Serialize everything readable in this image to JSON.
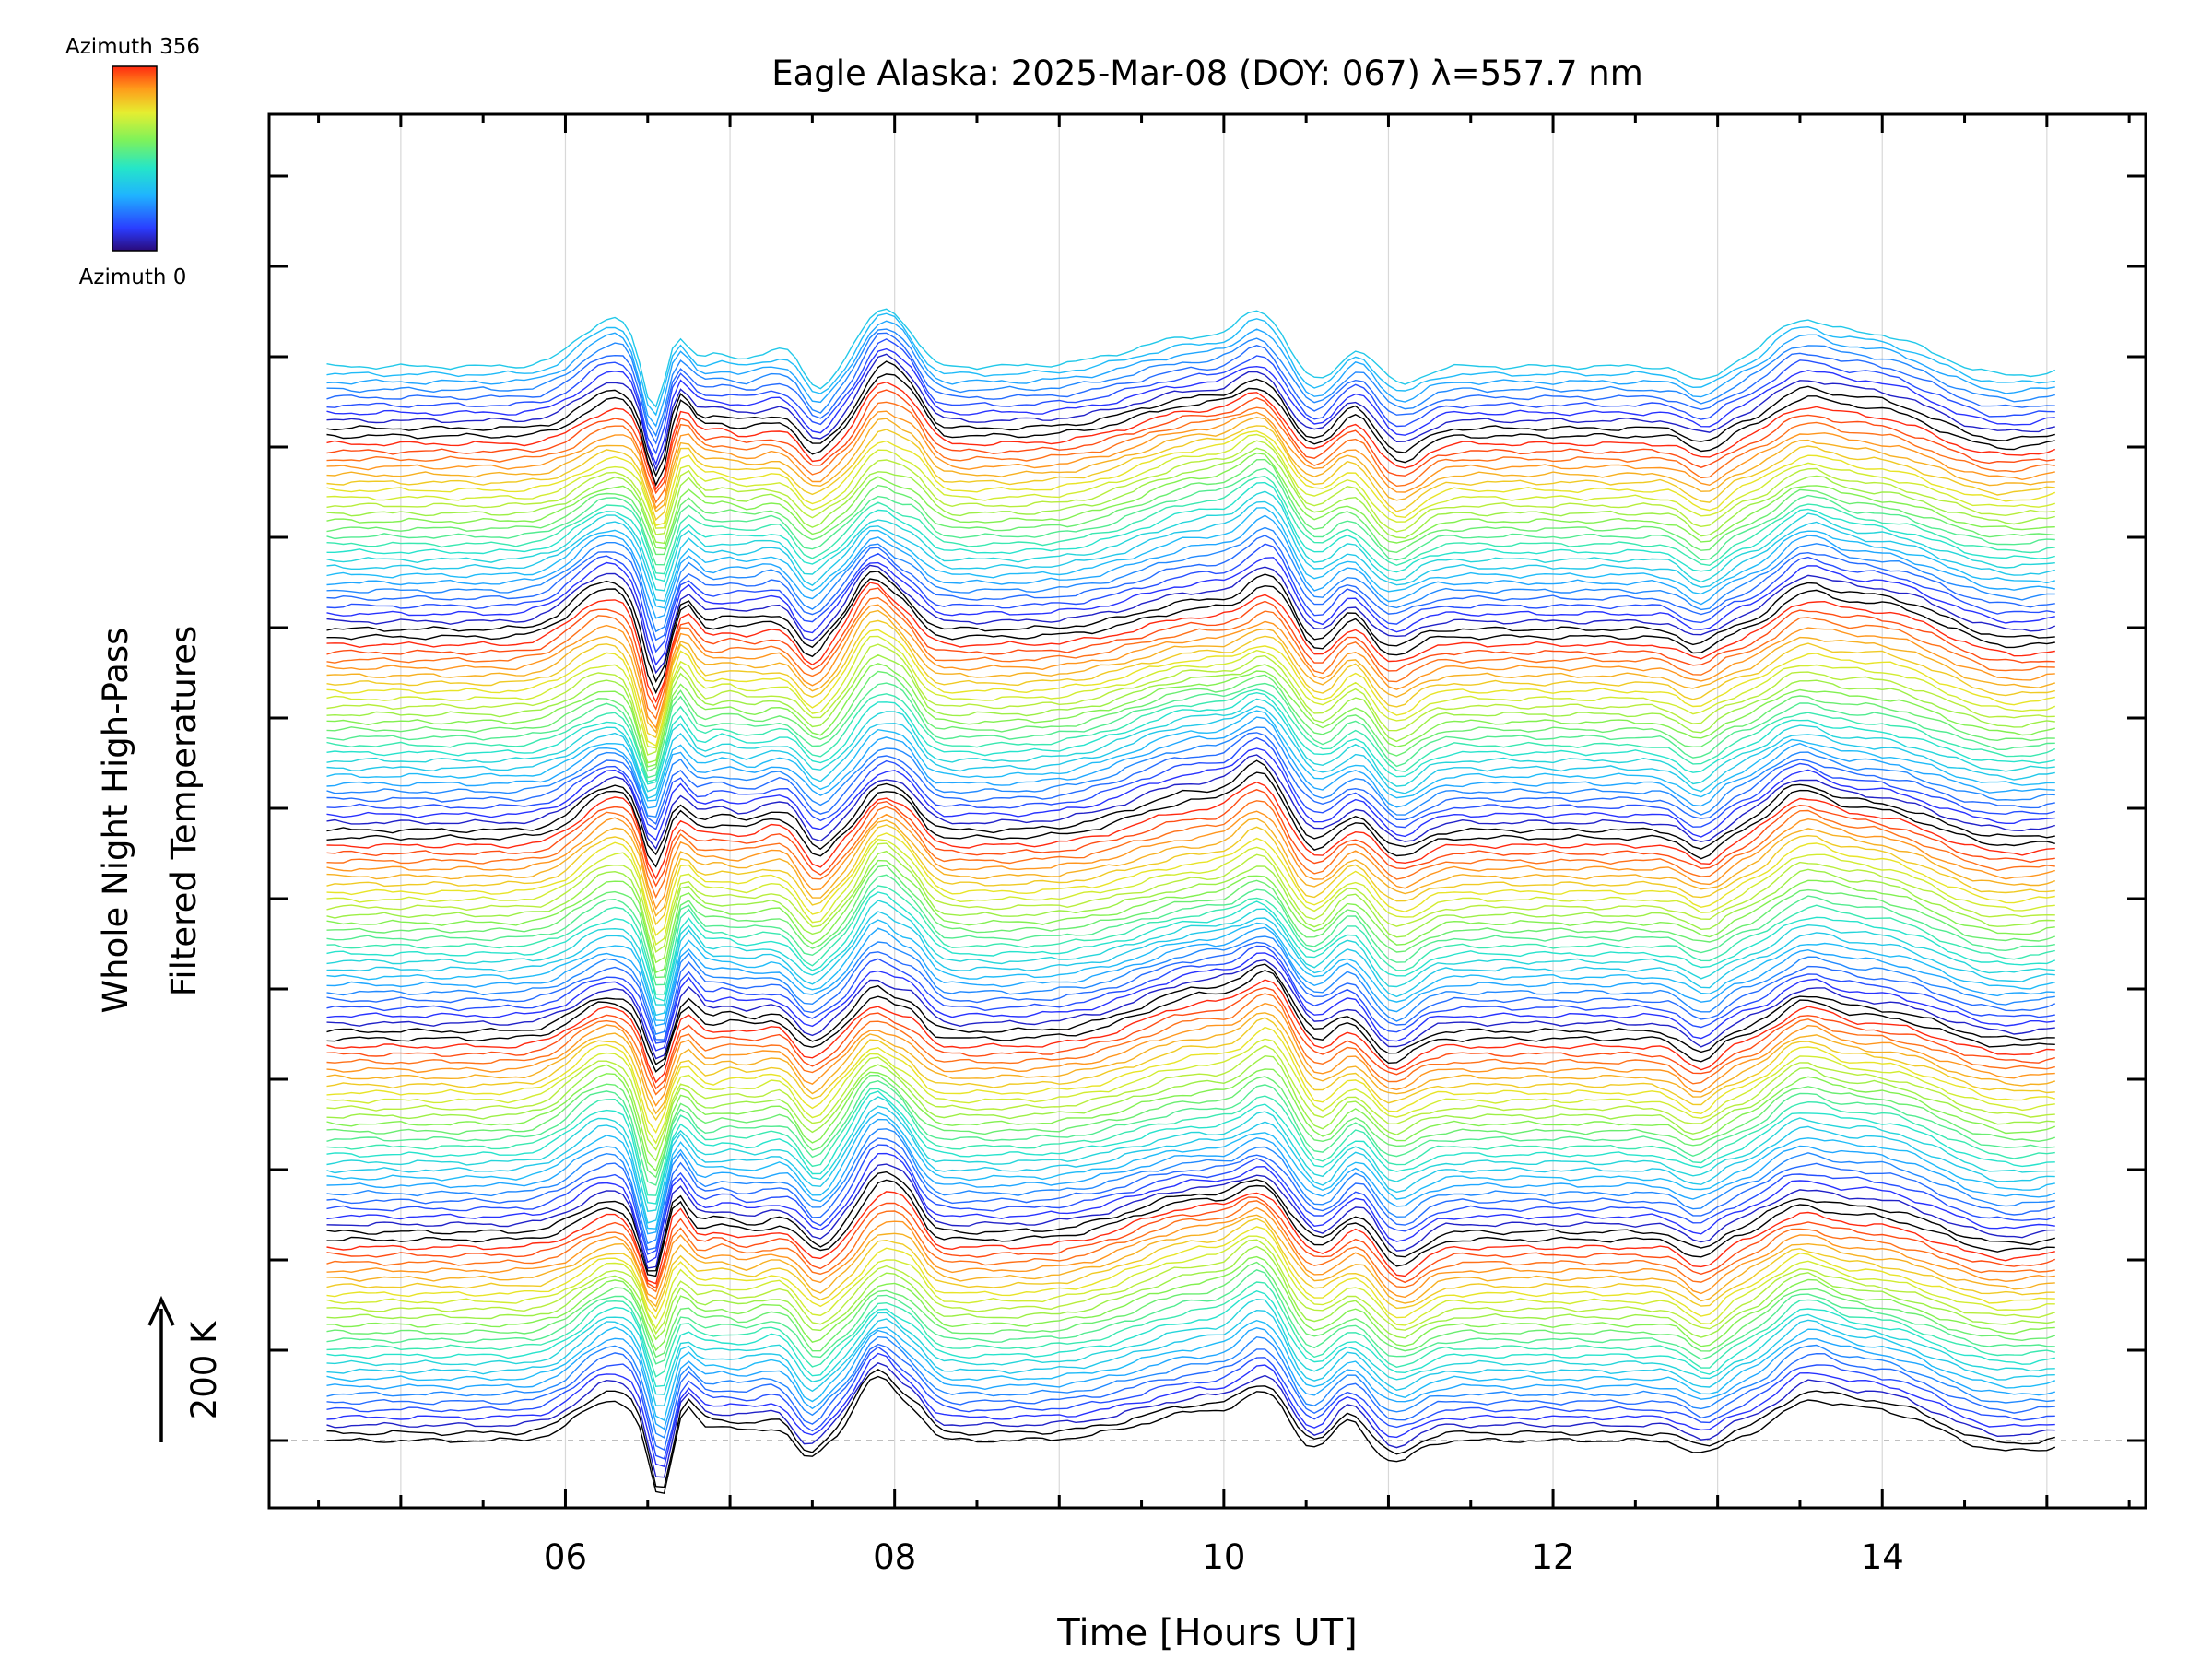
{
  "chart_data": {
    "type": "line",
    "title": "Eagle Alaska: 2025-Mar-08 (DOY: 067) λ=557.7 nm",
    "xlabel": "Time [Hours UT]",
    "ylabel_line1": "Whole Night High-Pass",
    "ylabel_line2": "Filtered Temperatures",
    "scale_bar_label": "200 K",
    "scale_bar_k": 200,
    "colorbar": {
      "top_label": "Azimuth 356",
      "bottom_label": "Azimuth 0",
      "azimuth_min": 0,
      "azimuth_max": 356,
      "colormap": "rainbow (blue low → red high)"
    },
    "xlim": [
      4.2,
      15.6
    ],
    "x_ticks": [
      6,
      8,
      10,
      12,
      14
    ],
    "x_tick_labels": [
      "06",
      "08",
      "10",
      "12",
      "14"
    ],
    "data_x_range": [
      4.55,
      15.05
    ],
    "grid": true,
    "n_traces": 140,
    "traces_per_group": 26,
    "trace_spacing_k": 13.1,
    "baseline_trace_offset_k": 0,
    "features": [
      {
        "x": 6.28,
        "amplitude_k": 68,
        "width_h": 0.2,
        "kind": "peak"
      },
      {
        "x": 6.55,
        "amplitude_k": -105,
        "width_h": 0.07,
        "kind": "dip"
      },
      {
        "x": 6.7,
        "amplitude_k": 55,
        "width_h": 0.07,
        "kind": "peak"
      },
      {
        "x": 6.95,
        "amplitude_k": 22,
        "width_h": 0.1,
        "kind": "peak"
      },
      {
        "x": 7.3,
        "amplitude_k": 28,
        "width_h": 0.15,
        "kind": "peak"
      },
      {
        "x": 7.5,
        "amplitude_k": -38,
        "width_h": 0.08,
        "kind": "dip"
      },
      {
        "x": 7.9,
        "amplitude_k": 88,
        "width_h": 0.12,
        "kind": "peak"
      },
      {
        "x": 8.1,
        "amplitude_k": 35,
        "width_h": 0.08,
        "kind": "peak"
      },
      {
        "x": 9.9,
        "amplitude_k": 62,
        "width_h": 0.4,
        "kind": "peak"
      },
      {
        "x": 10.25,
        "amplitude_k": 55,
        "width_h": 0.12,
        "kind": "peak"
      },
      {
        "x": 10.55,
        "amplitude_k": -30,
        "width_h": 0.1,
        "kind": "dip"
      },
      {
        "x": 10.8,
        "amplitude_k": 28,
        "width_h": 0.09,
        "kind": "peak"
      },
      {
        "x": 11.05,
        "amplitude_k": -38,
        "width_h": 0.12,
        "kind": "dip"
      },
      {
        "x": 12.9,
        "amplitude_k": -32,
        "width_h": 0.1,
        "kind": "dip"
      },
      {
        "x": 13.5,
        "amplitude_k": 38,
        "width_h": 0.15,
        "kind": "peak"
      },
      {
        "x": 13.9,
        "amplitude_k": 48,
        "width_h": 0.4,
        "kind": "peak"
      },
      {
        "x": 14.7,
        "amplitude_k": -20,
        "width_h": 0.3,
        "kind": "dip"
      }
    ]
  }
}
